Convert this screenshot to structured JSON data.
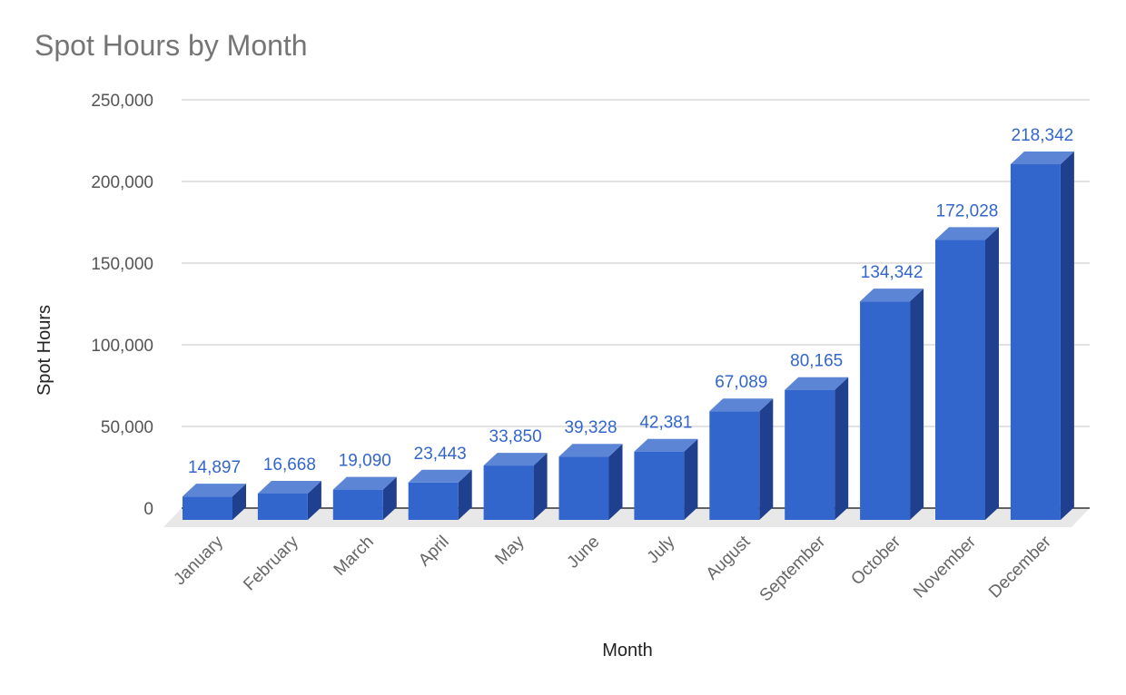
{
  "chart_data": {
    "type": "bar",
    "title": "Spot Hours by Month",
    "xlabel": "Month",
    "ylabel": "Spot Hours",
    "categories": [
      "January",
      "February",
      "March",
      "April",
      "May",
      "June",
      "July",
      "August",
      "September",
      "October",
      "November",
      "December"
    ],
    "values": [
      14897,
      16668,
      19090,
      23443,
      33850,
      39328,
      42381,
      67089,
      80165,
      134342,
      172028,
      218342
    ],
    "data_labels": [
      "14,897",
      "16,668",
      "19,090",
      "23,443",
      "33,850",
      "39,328",
      "42,381",
      "67,089",
      "80,165",
      "134,342",
      "172,028",
      "218,342"
    ],
    "y_ticks": [
      0,
      50000,
      100000,
      150000,
      200000,
      250000
    ],
    "y_tick_labels": [
      "0",
      "50,000",
      "100,000",
      "150,000",
      "200,000",
      "250,000"
    ],
    "ylim": [
      0,
      250000
    ],
    "grid": true,
    "legend": "none",
    "three_d": true,
    "colors": {
      "bar_front": "#3366cc",
      "bar_top": "#5c85d6",
      "bar_side": "#1f3f8f",
      "data_label": "#3366cc",
      "gridline": "#d9d9d9",
      "floor": "#e8e8e8"
    }
  }
}
